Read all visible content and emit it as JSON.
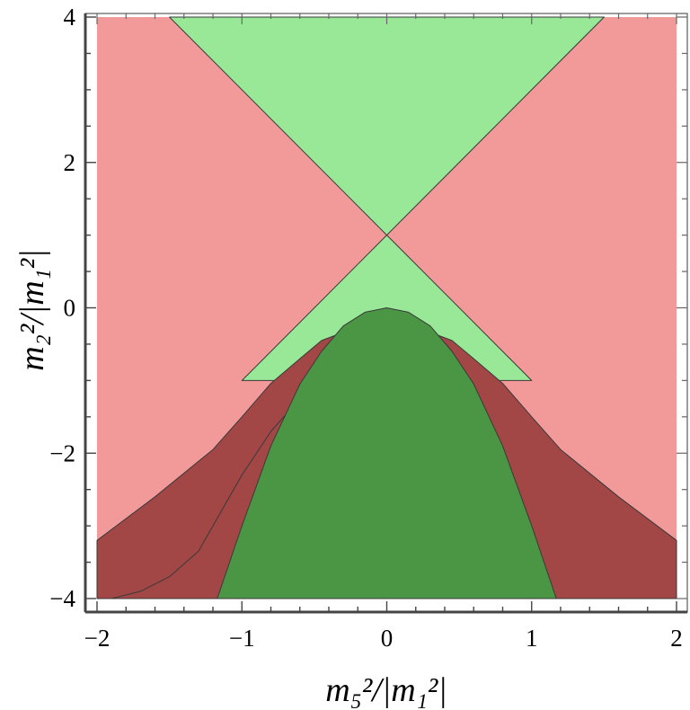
{
  "chart_data": {
    "type": "area",
    "xlabel": "m₅²/|m₁²|",
    "ylabel": "m₂²/|m₁²|",
    "xlim": [
      -2,
      2
    ],
    "ylim": [
      -4,
      4
    ],
    "x_ticks": [
      -2,
      -1,
      0,
      1,
      2
    ],
    "y_ticks": [
      -4,
      -2,
      0,
      2,
      4
    ],
    "x_tick_labels": [
      "−2",
      "−1",
      "0",
      "1",
      "2"
    ],
    "y_tick_labels": [
      "−4",
      "−2",
      "0",
      "2",
      "4"
    ],
    "grid": false,
    "colors": {
      "light_red": "#f29a9a",
      "light_green": "#98e898",
      "dark_red": "#a24646",
      "dark_green": "#4a9644",
      "boundary": "#3a3a3a"
    },
    "regions": [
      {
        "name": "light-red-region",
        "fill": "light_red",
        "points": [
          [
            -2,
            -4
          ],
          [
            2,
            -4
          ],
          [
            2,
            4
          ],
          [
            -2,
            4
          ]
        ]
      },
      {
        "name": "upper-green-wedge",
        "fill": "light_green",
        "points": [
          [
            -1.5,
            4
          ],
          [
            1.5,
            4
          ],
          [
            0,
            1
          ]
        ]
      },
      {
        "name": "lower-green-wedge",
        "fill": "light_green",
        "points": [
          [
            0,
            1
          ],
          [
            -1,
            -1
          ],
          [
            1,
            -1
          ]
        ]
      },
      {
        "name": "left-dark-red-band",
        "fill": "dark_red",
        "points": [
          [
            -2,
            -3.2
          ],
          [
            -1.6,
            -2.6
          ],
          [
            -1.2,
            -1.95
          ],
          [
            -1.0,
            -1.5
          ],
          [
            -0.8,
            -1.04
          ],
          [
            -0.6,
            -0.7
          ],
          [
            -0.45,
            -0.45
          ],
          [
            -0.33,
            -0.36
          ],
          [
            -0.15,
            -0.4
          ],
          [
            0.0,
            -0.5
          ],
          [
            0.2,
            -0.66
          ],
          [
            0.4,
            -0.9
          ],
          [
            0.6,
            -1.25
          ],
          [
            0.8,
            -1.7
          ],
          [
            1.0,
            -2.3
          ],
          [
            1.2,
            -3.0
          ],
          [
            1.3,
            -3.35
          ],
          [
            1.5,
            -3.7
          ],
          [
            1.7,
            -3.9
          ],
          [
            1.9,
            -4.0
          ],
          [
            -2.0,
            -4.0
          ]
        ]
      },
      {
        "name": "right-dark-red-band",
        "fill": "dark_red",
        "points": [
          [
            2.0,
            -3.2
          ],
          [
            1.6,
            -2.6
          ],
          [
            1.2,
            -1.95
          ],
          [
            1.0,
            -1.5
          ],
          [
            0.8,
            -1.04
          ],
          [
            0.6,
            -0.7
          ],
          [
            0.45,
            -0.45
          ],
          [
            0.33,
            -0.36
          ],
          [
            0.15,
            -0.4
          ],
          [
            0.0,
            -0.5
          ],
          [
            -0.2,
            -0.66
          ],
          [
            -0.4,
            -0.9
          ],
          [
            -0.6,
            -1.25
          ],
          [
            -0.8,
            -1.7
          ],
          [
            -1.0,
            -2.3
          ],
          [
            -1.2,
            -3.0
          ],
          [
            -1.3,
            -3.35
          ],
          [
            -1.5,
            -3.7
          ],
          [
            -1.7,
            -3.9
          ],
          [
            -1.9,
            -4.0
          ],
          [
            2.0,
            -4.0
          ]
        ]
      },
      {
        "name": "dark-green-parabola",
        "fill": "dark_green",
        "points": [
          [
            -1.17,
            -4.0
          ],
          [
            -1.0,
            -3.0
          ],
          [
            -0.8,
            -1.9
          ],
          [
            -0.6,
            -1.05
          ],
          [
            -0.45,
            -0.6
          ],
          [
            -0.3,
            -0.25
          ],
          [
            -0.15,
            -0.06
          ],
          [
            0.0,
            0.0
          ],
          [
            0.15,
            -0.06
          ],
          [
            0.3,
            -0.25
          ],
          [
            0.45,
            -0.6
          ],
          [
            0.6,
            -1.05
          ],
          [
            0.8,
            -1.9
          ],
          [
            1.0,
            -3.0
          ],
          [
            1.17,
            -4.0
          ]
        ]
      }
    ]
  }
}
